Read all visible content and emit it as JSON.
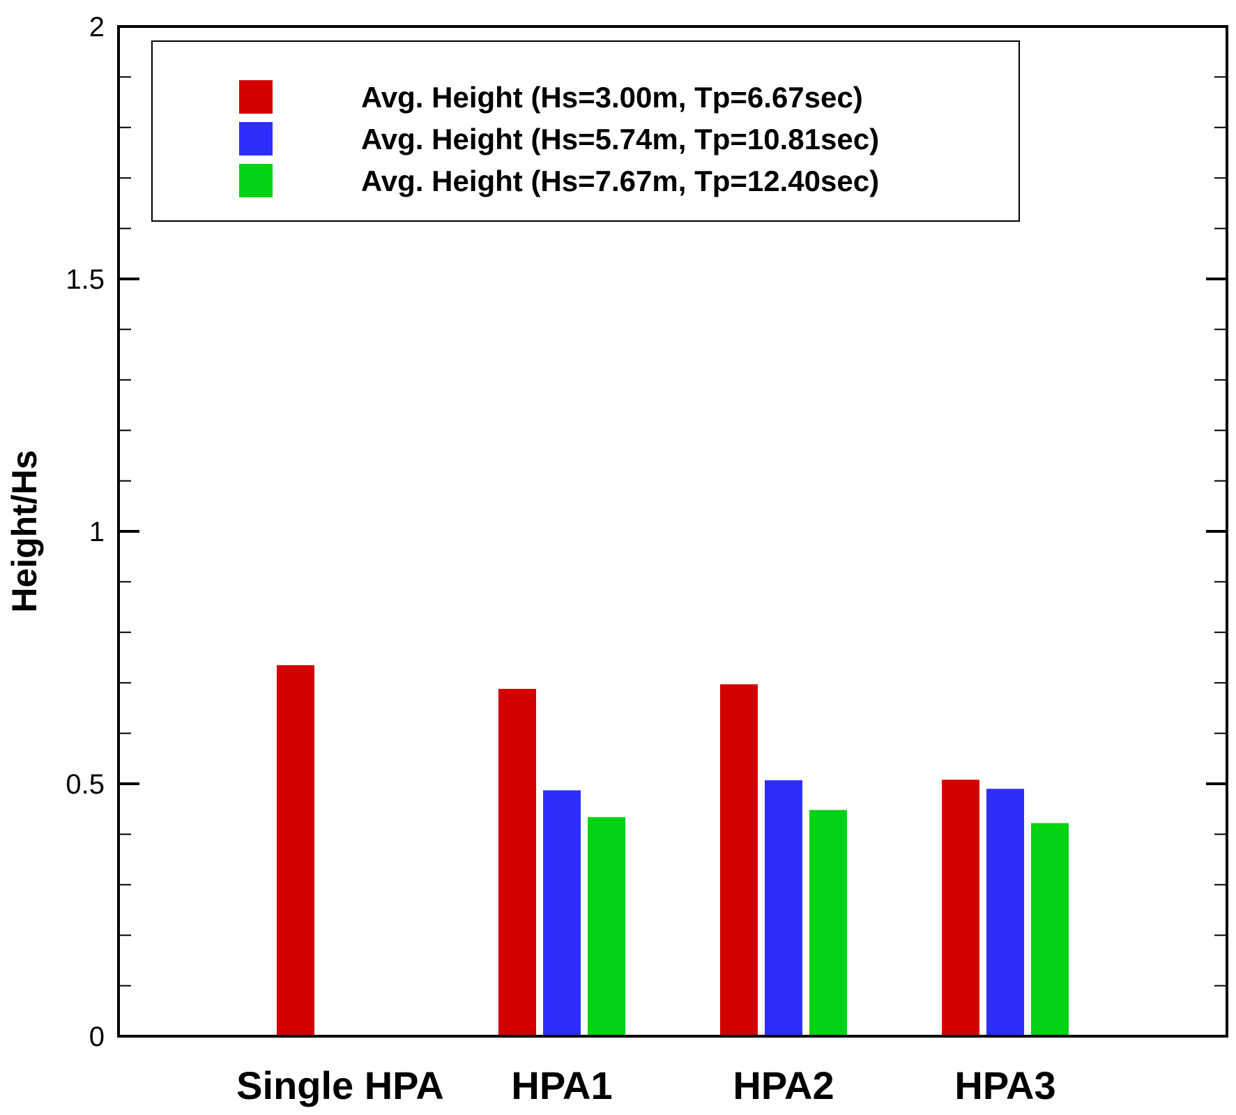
{
  "chart_data": {
    "type": "bar",
    "title": "",
    "xlabel": "",
    "ylabel": "Height/Hs",
    "ylim": [
      0,
      2
    ],
    "y_major_ticks": [
      0,
      0.5,
      1,
      1.5,
      2
    ],
    "y_tick_labels": [
      "0",
      "0.5",
      "1",
      "1.5",
      "2"
    ],
    "y_minor_step": 0.1,
    "grid": false,
    "legend_position": "top-left",
    "categories": [
      "Single HPA",
      "HPA1",
      "HPA2",
      "HPA3"
    ],
    "series": [
      {
        "name": "Avg. Height (Hs=3.00m, Tp=6.67sec)",
        "color": "#d40000",
        "values": [
          0.735,
          0.688,
          0.697,
          0.508
        ]
      },
      {
        "name": "Avg. Height (Hs=5.74m, Tp=10.81sec)",
        "color": "#2e2efc",
        "values": [
          null,
          0.487,
          0.507,
          0.49
        ]
      },
      {
        "name": "Avg. Height (Hs=7.67m, Tp=12.40sec)",
        "color": "#00d314",
        "values": [
          null,
          0.434,
          0.448,
          0.422
        ]
      }
    ]
  }
}
